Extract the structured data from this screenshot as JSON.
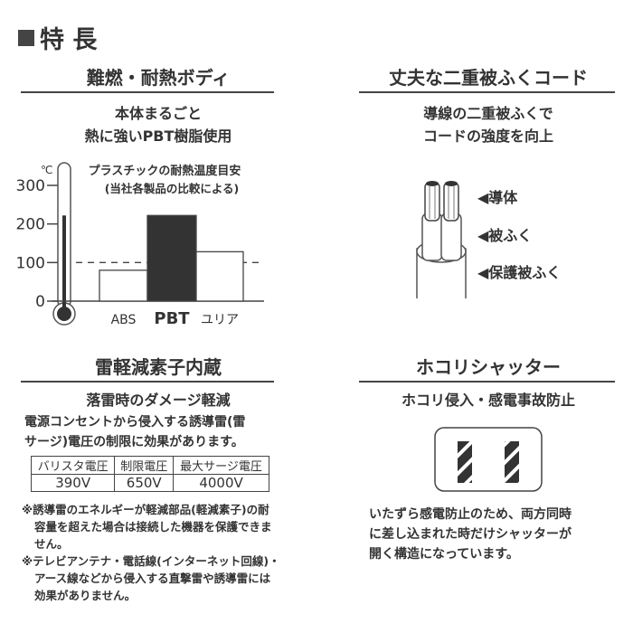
{
  "title": "特 長",
  "sections": [
    {
      "heading": "難燃・耐熱ボディ",
      "sub": [
        "本体まるごと",
        "熱に強いPBT樹脂使用"
      ]
    },
    {
      "heading": "丈夫な二重被ふくコード",
      "sub": [
        "導線の二重被ふくで",
        "コードの強度を向上"
      ],
      "labels": [
        "◀導体",
        "◀被ふく",
        "◀保護被ふく"
      ]
    },
    {
      "heading": "雷軽減素子内蔵",
      "sub": [
        "落雷時のダメージ軽減"
      ],
      "body": [
        "電源コンセントから侵入する誘導雷(雷",
        "サージ)電圧の制限に効果があります。"
      ],
      "table": {
        "headers": [
          "バリスタ電圧",
          "制限電圧",
          "最大サージ電圧"
        ],
        "values": [
          "390V",
          "650V",
          "4000V"
        ]
      },
      "notes": [
        "※誘導雷のエネルギーが軽減部品(軽減素子)の耐容量を超えた場合は接続した機器を保護できません。",
        "※テレビアンテナ・電話線(インターネット回線)・アース線などから侵入する直撃雷や誘導雷には効果がありません。"
      ]
    },
    {
      "heading": "ホコリシャッター",
      "sub": [
        "ホコリ侵入・感電事故防止"
      ],
      "body": [
        "いたずら感電防止のため、両方同時",
        "に差し込まれた時だけシャッターが",
        "開く構造になっています。"
      ]
    }
  ],
  "chart_data": {
    "type": "bar",
    "title": "プラスチックの耐熱温度目安",
    "subtitle": "(当社各製品の比較による)",
    "unit": "℃",
    "categories": [
      "ABS",
      "PBT",
      "ユリア"
    ],
    "values": [
      80,
      222,
      128
    ],
    "highlight": "PBT",
    "yticks": [
      "0",
      "100",
      "200",
      "300"
    ],
    "ylim": [
      0,
      300
    ],
    "reference_line": 100,
    "thermometer_level": 222,
    "colors": {
      "highlight": "#333333",
      "other": "#ffffff"
    }
  }
}
